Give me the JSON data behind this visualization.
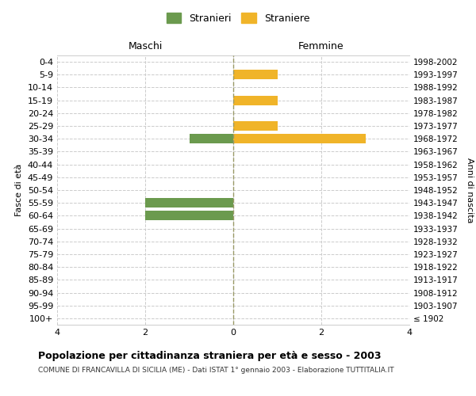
{
  "age_groups": [
    "100+",
    "95-99",
    "90-94",
    "85-89",
    "80-84",
    "75-79",
    "70-74",
    "65-69",
    "60-64",
    "55-59",
    "50-54",
    "45-49",
    "40-44",
    "35-39",
    "30-34",
    "25-29",
    "20-24",
    "15-19",
    "10-14",
    "5-9",
    "0-4"
  ],
  "birth_years": [
    "≤ 1902",
    "1903-1907",
    "1908-1912",
    "1913-1917",
    "1918-1922",
    "1923-1927",
    "1928-1932",
    "1933-1937",
    "1938-1942",
    "1943-1947",
    "1948-1952",
    "1953-1957",
    "1958-1962",
    "1963-1967",
    "1968-1972",
    "1973-1977",
    "1978-1982",
    "1983-1987",
    "1988-1992",
    "1993-1997",
    "1998-2002"
  ],
  "males": [
    0,
    0,
    0,
    0,
    0,
    0,
    0,
    0,
    -2,
    -2,
    0,
    0,
    0,
    0,
    -1,
    0,
    0,
    0,
    0,
    0,
    0
  ],
  "females": [
    0,
    0,
    0,
    0,
    0,
    0,
    0,
    0,
    0,
    0,
    0,
    0,
    0,
    0,
    3,
    1,
    0,
    1,
    0,
    1,
    0
  ],
  "male_color": "#6b9a4e",
  "female_color": "#f0b429",
  "background_color": "#ffffff",
  "grid_color": "#cccccc",
  "title": "Popolazione per cittadinanza straniera per età e sesso - 2003",
  "subtitle": "COMUNE DI FRANCAVILLA DI SICILIA (ME) - Dati ISTAT 1° gennaio 2003 - Elaborazione TUTTITALIA.IT",
  "xlabel_left": "Maschi",
  "xlabel_right": "Femmine",
  "ylabel_left": "Fasce di età",
  "ylabel_right": "Anni di nascita",
  "legend_male": "Stranieri",
  "legend_female": "Straniere",
  "xlim": [
    -4,
    4
  ],
  "xticks": [
    -4,
    -2,
    0,
    2,
    4
  ],
  "xtick_labels": [
    "4",
    "2",
    "0",
    "2",
    "4"
  ]
}
